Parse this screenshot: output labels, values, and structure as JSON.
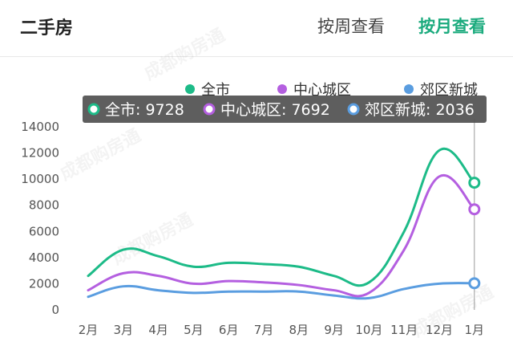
{
  "header": {
    "title": "二手房",
    "tab_week": "按周查看",
    "tab_month": "按月查看"
  },
  "watermark_text": "成都购房通",
  "colors": {
    "accent": "#1cab7e",
    "series_all": "#1dbb88",
    "series_center": "#b45fe0",
    "series_suburb": "#5a9de0",
    "tooltip_bg": "#555555"
  },
  "chart_data": {
    "type": "line",
    "categories": [
      "2月",
      "3月",
      "4月",
      "5月",
      "6月",
      "7月",
      "8月",
      "9月",
      "10月",
      "11月",
      "12月",
      "1月"
    ],
    "series": [
      {
        "name": "全市",
        "color": "#1dbb88",
        "values": [
          2600,
          4600,
          4100,
          3300,
          3600,
          3500,
          3300,
          2600,
          2100,
          6000,
          12200,
          9728
        ]
      },
      {
        "name": "中心城区",
        "color": "#b45fe0",
        "values": [
          1500,
          2800,
          2600,
          2000,
          2200,
          2100,
          1900,
          1500,
          1300,
          4600,
          10200,
          7692
        ]
      },
      {
        "name": "郊区新城",
        "color": "#5a9de0",
        "values": [
          1000,
          1800,
          1500,
          1300,
          1400,
          1400,
          1400,
          1100,
          900,
          1600,
          2000,
          2036
        ]
      }
    ],
    "y_ticks": [
      "0",
      "2000",
      "4000",
      "6000",
      "8000",
      "10000",
      "12000",
      "14000"
    ],
    "ylim": [
      0,
      14000
    ],
    "grid": false,
    "legend": "top-right",
    "tooltip": {
      "category": "1月",
      "items": [
        {
          "label": "全市: 9728",
          "color": "#1dbb88"
        },
        {
          "label": "中心城区: 7692",
          "color": "#b45fe0"
        },
        {
          "label": "郊区新城: 2036",
          "color": "#5a9de0"
        }
      ]
    }
  }
}
